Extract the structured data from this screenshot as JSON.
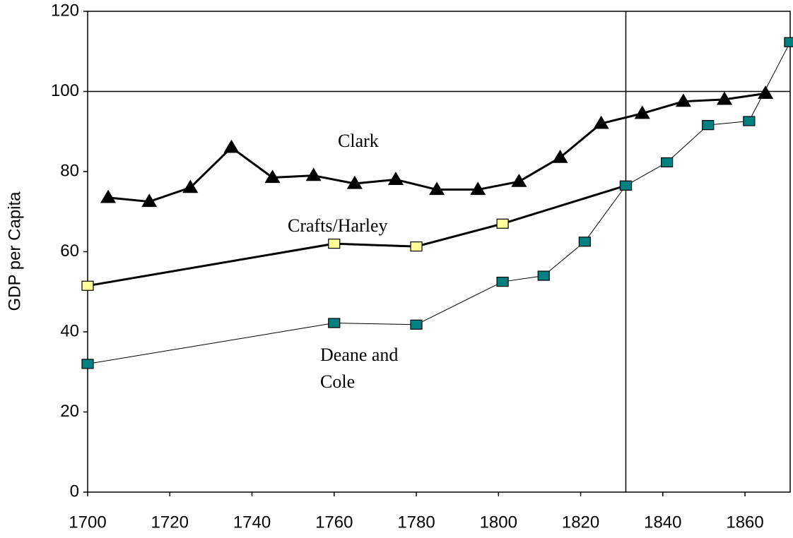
{
  "chart_data": {
    "type": "line",
    "ylabel": "GDP per Capita",
    "xlim": [
      1700,
      1871
    ],
    "xticks": [
      1700,
      1720,
      1740,
      1760,
      1780,
      1800,
      1820,
      1840,
      1860
    ],
    "ylim": [
      0,
      120
    ],
    "yticks": [
      0,
      20,
      40,
      60,
      80,
      100,
      120
    ],
    "grid": false,
    "hlines": [
      100
    ],
    "vlines": [
      1831
    ],
    "series": [
      {
        "name": "Clark",
        "color": "#000000",
        "marker": "triangle",
        "line_width": 3,
        "x": [
          1705,
          1715,
          1725,
          1735,
          1745,
          1755,
          1765,
          1775,
          1785,
          1795,
          1805,
          1815,
          1825,
          1835,
          1845,
          1855,
          1865
        ],
        "values": [
          73.5,
          72.5,
          76,
          86,
          78.5,
          79,
          77,
          78,
          75.5,
          75.5,
          77.5,
          83.5,
          92,
          94.5,
          97.5,
          98,
          99.5
        ]
      },
      {
        "name": "Crafts/Harley",
        "color": "#ffff99",
        "marker": "square",
        "line_width": 3,
        "x": [
          1700,
          1760,
          1780,
          1801,
          1831
        ],
        "values": [
          51.5,
          62,
          61.3,
          67,
          76.5
        ]
      },
      {
        "name": "Deane and Cole",
        "color": "#008080",
        "marker": "square",
        "line_width": 1,
        "x": [
          1700,
          1760,
          1780,
          1801,
          1811,
          1821,
          1831,
          1841,
          1851,
          1861,
          1871
        ],
        "values": [
          32,
          42.2,
          41.8,
          52.5,
          54,
          62.5,
          76.5,
          82.3,
          91.6,
          92.6,
          112.3
        ]
      }
    ]
  }
}
